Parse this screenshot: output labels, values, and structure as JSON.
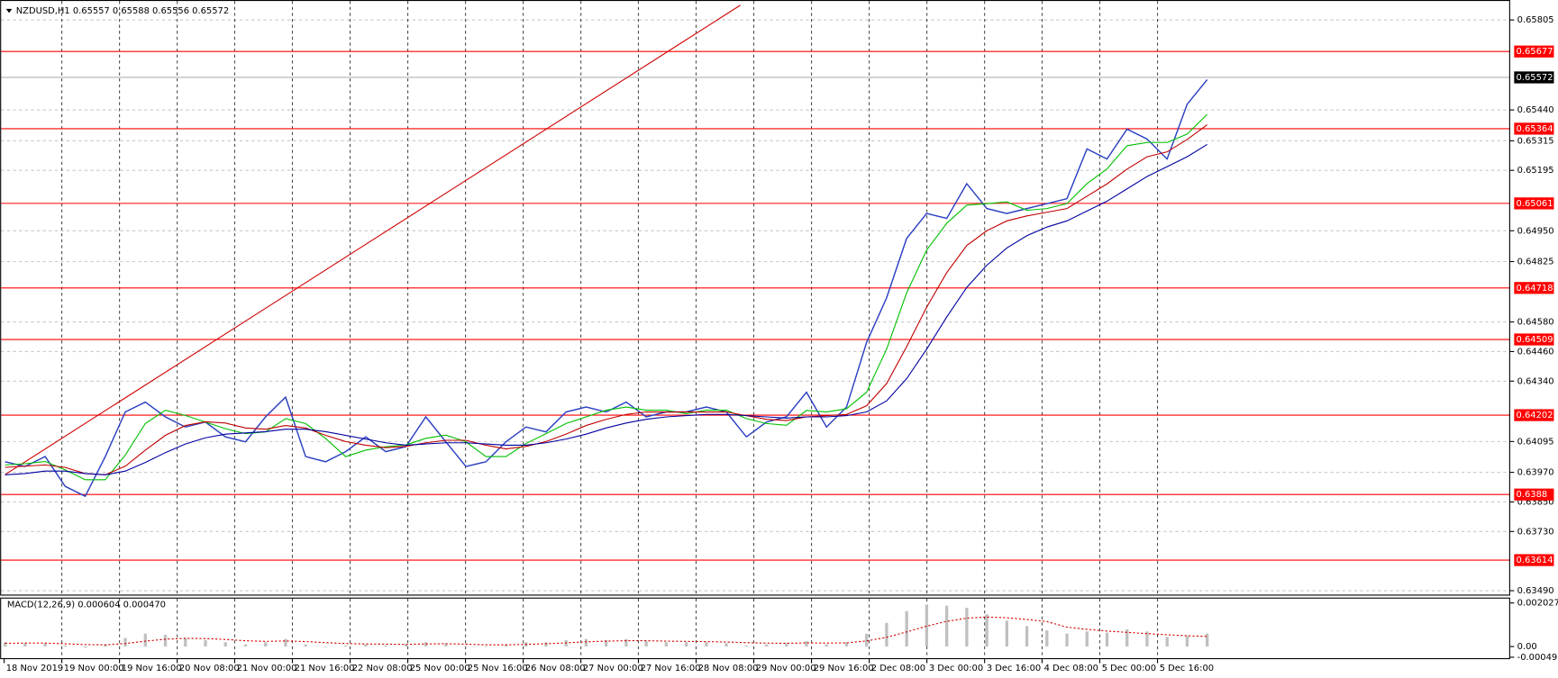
{
  "chart_data": [
    {
      "type": "line",
      "title": "NZDUSD,H1  0.65557 0.65588 0.65556 0.65572",
      "xlim": [
        0,
        60
      ],
      "xticks": [
        {
          "value": -0.05,
          "label": "18 Nov 2019"
        },
        {
          "value": 2.83,
          "label": "19 Nov 00:00"
        },
        {
          "value": 5.71,
          "label": "19 Nov 16:00"
        },
        {
          "value": 8.59,
          "label": "20 Nov 08:00"
        },
        {
          "value": 11.46,
          "label": "21 Nov 00:00"
        },
        {
          "value": 14.34,
          "label": "21 Nov 16:00"
        },
        {
          "value": 17.22,
          "label": "22 Nov 08:00"
        },
        {
          "value": 20.1,
          "label": "25 Nov 00:00"
        },
        {
          "value": 22.98,
          "label": "25 Nov 16:00"
        },
        {
          "value": 25.86,
          "label": "26 Nov 08:00"
        },
        {
          "value": 28.74,
          "label": "27 Nov 00:00"
        },
        {
          "value": 31.61,
          "label": "27 Nov 16:00"
        },
        {
          "value": 34.49,
          "label": "28 Nov 08:00"
        },
        {
          "value": 37.37,
          "label": "29 Nov 00:00"
        },
        {
          "value": 40.25,
          "label": "29 Nov 16:00"
        },
        {
          "value": 43.13,
          "label": "2 Dec 08:00"
        },
        {
          "value": 46.01,
          "label": "3 Dec 00:00"
        },
        {
          "value": 48.89,
          "label": "3 Dec 16:00"
        },
        {
          "value": 51.76,
          "label": "4 Dec 08:00"
        },
        {
          "value": 54.64,
          "label": "5 Dec 00:00"
        },
        {
          "value": 57.52,
          "label": "5 Dec 16:00"
        }
      ],
      "ylim": [
        0.6347,
        0.65886
      ],
      "yticks": [
        0.65805,
        {
          "value": 0.6544,
          "label": "0.65440"
        },
        0.65315,
        0.65195,
        {
          "value": 0.6495,
          "label": "0.64950"
        },
        0.64825,
        {
          "value": 0.6458,
          "label": "0.64580"
        },
        {
          "value": 0.6446,
          "label": "0.64460"
        },
        {
          "value": 0.6434,
          "label": "0.64340"
        },
        0.64095,
        {
          "value": 0.6397,
          "label": "0.63970"
        },
        {
          "value": 0.6385,
          "label": "0.63850"
        },
        {
          "value": 0.6373,
          "label": "0.63730"
        },
        {
          "value": 0.6349,
          "label": "0.63490"
        }
      ],
      "grid": true,
      "series": [
        {
          "color": "#2a3fc0",
          "values": [
            0.64013,
            0.63994,
            0.64034,
            0.63913,
            0.63873,
            0.64034,
            0.64215,
            0.64255,
            0.64195,
            0.64154,
            0.64174,
            0.64114,
            0.64094,
            0.64195,
            0.64275,
            0.64034,
            0.64013,
            0.64054,
            0.64114,
            0.64054,
            0.64074,
            0.64195,
            0.64094,
            0.63994,
            0.64013,
            0.64094,
            0.64154,
            0.64134,
            0.64215,
            0.64235,
            0.64215,
            0.64255,
            0.64195,
            0.64215,
            0.64215,
            0.64235,
            0.64215,
            0.64114,
            0.64174,
            0.64195,
            0.64295,
            0.64154,
            0.64235,
            0.64497,
            0.64678,
            0.64919,
            0.6502,
            0.65,
            0.65141,
            0.6504,
            0.6502,
            0.6504,
            0.6506,
            0.6508,
            0.65282,
            0.65241,
            0.65362,
            0.65322,
            0.65241,
            0.65463,
            0.65563
          ]
        },
        {
          "color": "#00c000",
          "values": [
            0.64,
            0.64005,
            0.64014,
            0.6398,
            0.6394,
            0.6394,
            0.6404,
            0.64168,
            0.64222,
            0.64201,
            0.64174,
            0.64147,
            0.64127,
            0.64134,
            0.64188,
            0.64168,
            0.64107,
            0.64034,
            0.6406,
            0.64074,
            0.64081,
            0.64108,
            0.64121,
            0.64094,
            0.64034,
            0.64034,
            0.64087,
            0.64127,
            0.64168,
            0.64195,
            0.64222,
            0.64235,
            0.64222,
            0.64222,
            0.64208,
            0.64222,
            0.64222,
            0.64188,
            0.64168,
            0.64161,
            0.64221,
            0.64215,
            0.64228,
            0.64295,
            0.6447,
            0.64698,
            0.64872,
            0.6498,
            0.65054,
            0.6506,
            0.65067,
            0.65033,
            0.6504,
            0.6506,
            0.65141,
            0.65201,
            0.65295,
            0.65308,
            0.65308,
            0.65342,
            0.65422
          ]
        },
        {
          "color": "#c00000",
          "values": [
            0.6399,
            0.63995,
            0.64,
            0.6399,
            0.63965,
            0.6396,
            0.63995,
            0.6406,
            0.6412,
            0.6416,
            0.64175,
            0.6417,
            0.6415,
            0.64145,
            0.6416,
            0.6415,
            0.6412,
            0.64095,
            0.6408,
            0.6407,
            0.64075,
            0.6409,
            0.641,
            0.641,
            0.6408,
            0.64065,
            0.64075,
            0.64095,
            0.64125,
            0.6416,
            0.64185,
            0.64205,
            0.64215,
            0.64215,
            0.64215,
            0.64215,
            0.64215,
            0.642,
            0.64185,
            0.6418,
            0.64195,
            0.642,
            0.64205,
            0.6424,
            0.6433,
            0.6448,
            0.6464,
            0.6478,
            0.6489,
            0.6495,
            0.6499,
            0.6501,
            0.65025,
            0.6504,
            0.6509,
            0.6514,
            0.652,
            0.6525,
            0.6527,
            0.6532,
            0.6538
          ]
        },
        {
          "color": "#0000a0",
          "values": [
            0.6396,
            0.63965,
            0.63975,
            0.63975,
            0.63965,
            0.6396,
            0.63975,
            0.6401,
            0.6405,
            0.64085,
            0.6411,
            0.64125,
            0.6413,
            0.64135,
            0.64145,
            0.64145,
            0.64135,
            0.6412,
            0.64105,
            0.6409,
            0.6408,
            0.64085,
            0.6409,
            0.6409,
            0.64085,
            0.6408,
            0.6408,
            0.6409,
            0.64105,
            0.64125,
            0.6415,
            0.6417,
            0.64185,
            0.64195,
            0.642,
            0.64205,
            0.64205,
            0.642,
            0.64195,
            0.6419,
            0.64195,
            0.64195,
            0.642,
            0.64215,
            0.6426,
            0.6435,
            0.6447,
            0.646,
            0.6472,
            0.6481,
            0.6488,
            0.6493,
            0.64965,
            0.6499,
            0.6503,
            0.6507,
            0.6512,
            0.6517,
            0.6521,
            0.6525,
            0.653
          ]
        }
      ],
      "levels": [
        {
          "value": 0.65677,
          "color": "#ff0000"
        },
        {
          "value": 0.65364,
          "color": "#ff0000"
        },
        {
          "value": 0.65061,
          "color": "#ff0000"
        },
        {
          "value": 0.64718,
          "color": "#ff0000"
        },
        {
          "value": 0.64509,
          "color": "#ff0000"
        },
        {
          "value": 0.64202,
          "color": "#ff0000"
        },
        {
          "value": 0.6388,
          "color": "#ff0000"
        },
        {
          "value": 0.63614,
          "color": "#ff0000"
        }
      ],
      "last_price": 0.65572,
      "trendline": {
        "color": "#d00000",
        "x": [
          0,
          36.7
        ],
        "y": [
          0.63961,
          0.65865
        ]
      }
    },
    {
      "type": "bar",
      "title": "MACD(12,26,9) 0.000604 0.000470",
      "xlim": [
        0,
        60
      ],
      "ylim": [
        -0.00054,
        0.00223
      ],
      "yticks": [
        0.002027,
        {
          "value": 0,
          "label": "0.00"
        },
        -0.000497
      ],
      "color": "#c0c0c0",
      "values": [
        0.0002,
        0.00015,
        0.00015,
        5e-05,
        -5e-05,
        0.0001,
        0.0004,
        0.0006,
        0.00055,
        0.0004,
        0.0003,
        0.0002,
        0.0001,
        0.0002,
        0.00035,
        0.0001,
        0,
        5e-05,
        0.0001,
        5e-05,
        0.0001,
        0.0002,
        0.00015,
        0,
        0,
        0.0001,
        0.0002,
        0.0002,
        0.0003,
        0.00035,
        0.0003,
        0.00035,
        0.00025,
        0.0002,
        0.0002,
        0.0002,
        0.00015,
        5e-05,
        0.0001,
        0.00015,
        0.00025,
        0.0001,
        0.0002,
        0.0006,
        0.0011,
        0.00165,
        0.00195,
        0.0019,
        0.0018,
        0.0015,
        0.0012,
        0.00095,
        0.00075,
        0.0006,
        0.0007,
        0.00065,
        0.0008,
        0.0007,
        0.00045,
        0.0005,
        0.0006
      ],
      "signal": {
        "color": "#d00000",
        "values": [
          0.00015,
          0.00016,
          0.00016,
          0.00013,
          9e-05,
          8e-05,
          0.00014,
          0.00025,
          0.00034,
          0.00038,
          0.00037,
          0.00033,
          0.00027,
          0.00024,
          0.00026,
          0.00023,
          0.00018,
          0.00014,
          0.00012,
          0.00011,
          0.0001,
          0.00012,
          0.00013,
          0.00011,
          8e-05,
          8e-05,
          0.0001,
          0.00013,
          0.00017,
          0.00022,
          0.00025,
          0.00027,
          0.00027,
          0.00025,
          0.00024,
          0.00023,
          0.00021,
          0.00018,
          0.00016,
          0.00015,
          0.00017,
          0.00016,
          0.00017,
          0.00026,
          0.00043,
          0.00068,
          0.00095,
          0.00117,
          0.00132,
          0.00137,
          0.00134,
          0.00126,
          0.00116,
          0.0009,
          0.0008,
          0.00072,
          0.00066,
          0.0006,
          0.00055,
          0.0005,
          0.00047
        ]
      }
    }
  ]
}
